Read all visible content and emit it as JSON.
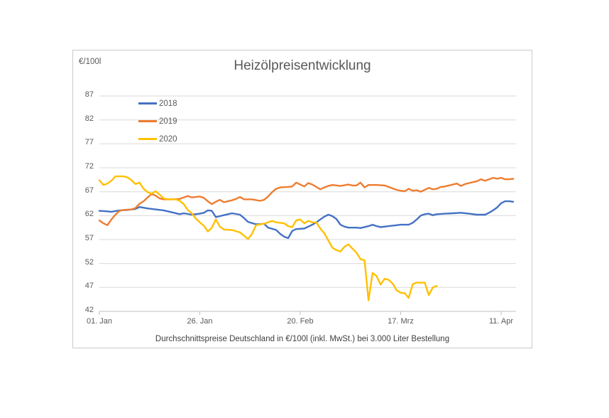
{
  "chart": {
    "title": "Heizölpreisentwicklung",
    "unit_label": "€/100l",
    "subtitle": "Durchschnittspreise Deutschland in €/100l (inkl. MwSt.) bei 3.000 Liter Bestellung"
  },
  "colors": {
    "series_2018": "#4472C4",
    "series_2019": "#ED7D31",
    "series_2020": "#FFC000",
    "gridline": "#d9d9d9",
    "axis": "#bfbfbf",
    "text": "#595959"
  },
  "chart_data": {
    "type": "line",
    "title": "Heizölpreisentwicklung",
    "ylabel": "€/100l",
    "ylim": [
      42,
      87
    ],
    "grid": true,
    "legend_position": "top-left-inside",
    "yticks": [
      87,
      82,
      77,
      72,
      67,
      62,
      57,
      52,
      47,
      42
    ],
    "xticks": [
      {
        "day": 0,
        "label": "01. Jan"
      },
      {
        "day": 25,
        "label": "26. Jan"
      },
      {
        "day": 50,
        "label": "20. Feb"
      },
      {
        "day": 75,
        "label": "17. Mrz"
      },
      {
        "day": 100,
        "label": "11. Apr"
      }
    ],
    "x_unit": "days since Jan 1",
    "series": [
      {
        "name": "2018",
        "color": "#4472C4",
        "points": [
          [
            0,
            63.0
          ],
          [
            2,
            62.9
          ],
          [
            3,
            62.8
          ],
          [
            5,
            63.1
          ],
          [
            7,
            63.2
          ],
          [
            9,
            63.4
          ],
          [
            10,
            63.8
          ],
          [
            12,
            63.5
          ],
          [
            14,
            63.3
          ],
          [
            16,
            63.1
          ],
          [
            18,
            62.7
          ],
          [
            20,
            62.3
          ],
          [
            21,
            62.5
          ],
          [
            23,
            62.2
          ],
          [
            25,
            62.4
          ],
          [
            26,
            62.6
          ],
          [
            27,
            63.1
          ],
          [
            28,
            63.0
          ],
          [
            29,
            61.7
          ],
          [
            30,
            61.9
          ],
          [
            32,
            62.3
          ],
          [
            33,
            62.5
          ],
          [
            35,
            62.2
          ],
          [
            36,
            61.5
          ],
          [
            37,
            60.7
          ],
          [
            39,
            60.2
          ],
          [
            41,
            60.3
          ],
          [
            42,
            59.5
          ],
          [
            44,
            59.0
          ],
          [
            45,
            58.2
          ],
          [
            46,
            57.6
          ],
          [
            47,
            57.3
          ],
          [
            48,
            58.8
          ],
          [
            49,
            59.2
          ],
          [
            51,
            59.3
          ],
          [
            53,
            60.1
          ],
          [
            54,
            60.6
          ],
          [
            55,
            61.2
          ],
          [
            56,
            61.8
          ],
          [
            57,
            62.2
          ],
          [
            58,
            61.9
          ],
          [
            59,
            61.3
          ],
          [
            60,
            60.1
          ],
          [
            61,
            59.7
          ],
          [
            62,
            59.5
          ],
          [
            64,
            59.5
          ],
          [
            65,
            59.4
          ],
          [
            67,
            59.8
          ],
          [
            68,
            60.1
          ],
          [
            69,
            59.8
          ],
          [
            70,
            59.6
          ],
          [
            72,
            59.8
          ],
          [
            74,
            60.0
          ],
          [
            75,
            60.1
          ],
          [
            77,
            60.1
          ],
          [
            78,
            60.5
          ],
          [
            79,
            61.2
          ],
          [
            80,
            62.0
          ],
          [
            81,
            62.3
          ],
          [
            82,
            62.4
          ],
          [
            83,
            62.1
          ],
          [
            84,
            62.3
          ],
          [
            86,
            62.4
          ],
          [
            88,
            62.5
          ],
          [
            90,
            62.6
          ],
          [
            92,
            62.4
          ],
          [
            94,
            62.2
          ],
          [
            96,
            62.2
          ],
          [
            97,
            62.6
          ],
          [
            98,
            63.1
          ],
          [
            99,
            63.7
          ],
          [
            100,
            64.6
          ],
          [
            101,
            65.0
          ],
          [
            102,
            65.0
          ],
          [
            103,
            64.9
          ]
        ]
      },
      {
        "name": "2019",
        "color": "#ED7D31",
        "points": [
          [
            0,
            61.0
          ],
          [
            1,
            60.4
          ],
          [
            2,
            60.0
          ],
          [
            3,
            61.2
          ],
          [
            4,
            62.2
          ],
          [
            5,
            63.0
          ],
          [
            6,
            63.2
          ],
          [
            8,
            63.3
          ],
          [
            9,
            63.6
          ],
          [
            10,
            64.5
          ],
          [
            11,
            65.0
          ],
          [
            12,
            65.8
          ],
          [
            13,
            66.5
          ],
          [
            14,
            66.2
          ],
          [
            15,
            65.6
          ],
          [
            16,
            65.4
          ],
          [
            18,
            65.4
          ],
          [
            20,
            65.5
          ],
          [
            22,
            66.1
          ],
          [
            23,
            65.8
          ],
          [
            24,
            65.9
          ],
          [
            25,
            66.0
          ],
          [
            26,
            65.7
          ],
          [
            27,
            65.0
          ],
          [
            28,
            64.4
          ],
          [
            29,
            64.9
          ],
          [
            30,
            65.3
          ],
          [
            31,
            64.8
          ],
          [
            32,
            65.0
          ],
          [
            33,
            65.2
          ],
          [
            34,
            65.5
          ],
          [
            35,
            65.9
          ],
          [
            36,
            65.4
          ],
          [
            38,
            65.4
          ],
          [
            40,
            65.1
          ],
          [
            41,
            65.3
          ],
          [
            42,
            66.0
          ],
          [
            43,
            66.9
          ],
          [
            44,
            67.6
          ],
          [
            45,
            67.9
          ],
          [
            47,
            68.0
          ],
          [
            48,
            68.1
          ],
          [
            49,
            68.9
          ],
          [
            50,
            68.5
          ],
          [
            51,
            68.1
          ],
          [
            52,
            68.8
          ],
          [
            53,
            68.5
          ],
          [
            54,
            68.0
          ],
          [
            55,
            67.5
          ],
          [
            56,
            67.9
          ],
          [
            57,
            68.2
          ],
          [
            58,
            68.4
          ],
          [
            60,
            68.2
          ],
          [
            62,
            68.5
          ],
          [
            63,
            68.3
          ],
          [
            64,
            68.3
          ],
          [
            65,
            68.9
          ],
          [
            66,
            67.9
          ],
          [
            67,
            68.4
          ],
          [
            69,
            68.4
          ],
          [
            71,
            68.3
          ],
          [
            72,
            68.0
          ],
          [
            73,
            67.7
          ],
          [
            74,
            67.4
          ],
          [
            75,
            67.2
          ],
          [
            76,
            67.1
          ],
          [
            77,
            67.6
          ],
          [
            78,
            67.2
          ],
          [
            79,
            67.3
          ],
          [
            80,
            67.0
          ],
          [
            81,
            67.4
          ],
          [
            82,
            67.8
          ],
          [
            83,
            67.5
          ],
          [
            84,
            67.6
          ],
          [
            85,
            68.0
          ],
          [
            86,
            68.1
          ],
          [
            87,
            68.3
          ],
          [
            88,
            68.5
          ],
          [
            89,
            68.7
          ],
          [
            90,
            68.2
          ],
          [
            91,
            68.6
          ],
          [
            92,
            68.8
          ],
          [
            93,
            69.0
          ],
          [
            94,
            69.2
          ],
          [
            95,
            69.6
          ],
          [
            96,
            69.3
          ],
          [
            97,
            69.6
          ],
          [
            98,
            69.9
          ],
          [
            99,
            69.7
          ],
          [
            100,
            69.9
          ],
          [
            101,
            69.6
          ],
          [
            102,
            69.6
          ],
          [
            103,
            69.7
          ]
        ]
      },
      {
        "name": "2020",
        "color": "#FFC000",
        "points": [
          [
            0,
            69.4
          ],
          [
            1,
            68.4
          ],
          [
            2,
            68.7
          ],
          [
            3,
            69.3
          ],
          [
            4,
            70.2
          ],
          [
            6,
            70.2
          ],
          [
            7,
            70.0
          ],
          [
            8,
            69.4
          ],
          [
            9,
            68.6
          ],
          [
            10,
            68.9
          ],
          [
            11,
            67.6
          ],
          [
            12,
            66.9
          ],
          [
            13,
            66.6
          ],
          [
            14,
            67.1
          ],
          [
            15,
            66.4
          ],
          [
            16,
            65.6
          ],
          [
            17,
            65.4
          ],
          [
            19,
            65.4
          ],
          [
            20,
            65.1
          ],
          [
            21,
            64.4
          ],
          [
            22,
            63.2
          ],
          [
            23,
            62.5
          ],
          [
            24,
            61.4
          ],
          [
            25,
            60.6
          ],
          [
            26,
            59.9
          ],
          [
            27,
            58.7
          ],
          [
            28,
            59.5
          ],
          [
            29,
            61.2
          ],
          [
            30,
            59.7
          ],
          [
            31,
            59.1
          ],
          [
            33,
            59.0
          ],
          [
            35,
            58.5
          ],
          [
            36,
            57.8
          ],
          [
            37,
            57.1
          ],
          [
            38,
            58.2
          ],
          [
            39,
            60.0
          ],
          [
            40,
            60.2
          ],
          [
            41,
            60.3
          ],
          [
            42,
            60.6
          ],
          [
            43,
            60.9
          ],
          [
            44,
            60.6
          ],
          [
            45,
            60.5
          ],
          [
            46,
            60.4
          ],
          [
            47,
            59.8
          ],
          [
            48,
            59.6
          ],
          [
            49,
            61.0
          ],
          [
            50,
            61.2
          ],
          [
            51,
            60.4
          ],
          [
            52,
            60.9
          ],
          [
            53,
            60.6
          ],
          [
            54,
            60.6
          ],
          [
            55,
            59.3
          ],
          [
            56,
            58.3
          ],
          [
            57,
            56.8
          ],
          [
            58,
            55.3
          ],
          [
            59,
            54.8
          ],
          [
            60,
            54.5
          ],
          [
            61,
            55.5
          ],
          [
            62,
            56.0
          ],
          [
            63,
            55.1
          ],
          [
            64,
            54.3
          ],
          [
            65,
            52.9
          ],
          [
            66,
            52.7
          ],
          [
            67,
            44.3
          ],
          [
            68,
            50.0
          ],
          [
            69,
            49.4
          ],
          [
            70,
            47.6
          ],
          [
            71,
            48.8
          ],
          [
            72,
            48.6
          ],
          [
            73,
            47.8
          ],
          [
            74,
            46.4
          ],
          [
            75,
            45.9
          ],
          [
            76,
            45.8
          ],
          [
            77,
            44.8
          ],
          [
            78,
            47.7
          ],
          [
            79,
            48.0
          ],
          [
            80,
            48.0
          ],
          [
            81,
            48.0
          ],
          [
            82,
            45.4
          ],
          [
            83,
            47.0
          ],
          [
            84,
            47.3
          ]
        ]
      }
    ]
  }
}
